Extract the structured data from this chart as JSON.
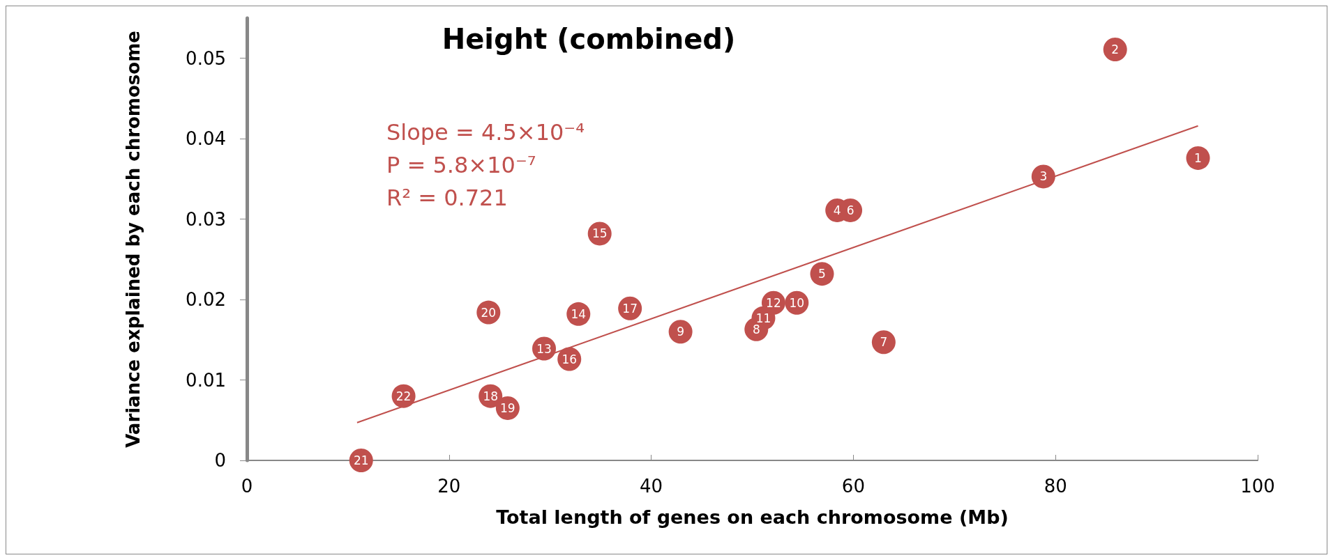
{
  "chart_data": {
    "type": "scatter",
    "title": "Height (combined)",
    "xlabel": "Total length of genes on each chromosome (Mb)",
    "ylabel": "Variance explained by each chromosome",
    "annotations": [
      "Slope = 4.5×10⁻⁴",
      "P = 5.8×10⁻⁷",
      "R² = 0.721",
      {
        "text": "1",
        "x": 94.1,
        "y": 0.0376
      },
      {
        "text": "2",
        "x": 85.9,
        "y": 0.0511
      },
      {
        "text": "3",
        "x": 78.8,
        "y": 0.0353
      },
      {
        "text": "4",
        "x": 58.4,
        "y": 0.0311
      },
      {
        "text": "5",
        "x": 56.9,
        "y": 0.0232
      },
      {
        "text": "6",
        "x": 59.7,
        "y": 0.0311
      },
      {
        "text": "7",
        "x": 63.0,
        "y": 0.0147
      },
      {
        "text": "8",
        "x": 50.4,
        "y": 0.0163
      },
      {
        "text": "9",
        "x": 42.9,
        "y": 0.016
      },
      {
        "text": "10",
        "x": 54.4,
        "y": 0.0196
      },
      {
        "text": "11",
        "x": 51.1,
        "y": 0.0177
      },
      {
        "text": "12",
        "x": 52.1,
        "y": 0.0196
      },
      {
        "text": "13",
        "x": 29.4,
        "y": 0.0139
      },
      {
        "text": "14",
        "x": 32.8,
        "y": 0.0182
      },
      {
        "text": "15",
        "x": 34.9,
        "y": 0.0282
      },
      {
        "text": "16",
        "x": 31.9,
        "y": 0.0126
      },
      {
        "text": "17",
        "x": 37.9,
        "y": 0.0189
      },
      {
        "text": "18",
        "x": 24.1,
        "y": 0.008
      },
      {
        "text": "19",
        "x": 25.8,
        "y": 0.0065
      },
      {
        "text": "20",
        "x": 23.9,
        "y": 0.0184
      },
      {
        "text": "21",
        "x": 11.3,
        "y": 0.0
      },
      {
        "text": "22",
        "x": 15.5,
        "y": 0.008
      }
    ],
    "series": [
      {
        "color": "#c0504d",
        "marker": "circle",
        "x": [
          94.1,
          85.9,
          78.8,
          58.4,
          56.9,
          59.7,
          63.0,
          50.4,
          42.9,
          54.4,
          51.1,
          52.1,
          29.4,
          32.8,
          34.9,
          31.9,
          37.9,
          24.1,
          25.8,
          23.9,
          11.3,
          15.5
        ],
        "values": [
          0.0376,
          0.0511,
          0.0353,
          0.0311,
          0.0232,
          0.0311,
          0.0147,
          0.0163,
          0.016,
          0.0196,
          0.0177,
          0.0196,
          0.0139,
          0.0182,
          0.0282,
          0.0126,
          0.0189,
          0.008,
          0.0065,
          0.0184,
          0.0,
          0.008
        ]
      },
      {
        "type": "line",
        "color": "#c0504d",
        "marker": "none",
        "line_style": "solid",
        "x": [
          10.9,
          94.1
        ],
        "values": [
          0.0047,
          0.0416
        ]
      }
    ],
    "xlim": [
      0,
      100
    ],
    "xticks": [
      0,
      20,
      40,
      60,
      80,
      100
    ],
    "ylim": [
      0,
      0.055
    ],
    "yticks": [
      0,
      0.01,
      0.02,
      0.03,
      0.04,
      0.05
    ],
    "grid": false
  }
}
